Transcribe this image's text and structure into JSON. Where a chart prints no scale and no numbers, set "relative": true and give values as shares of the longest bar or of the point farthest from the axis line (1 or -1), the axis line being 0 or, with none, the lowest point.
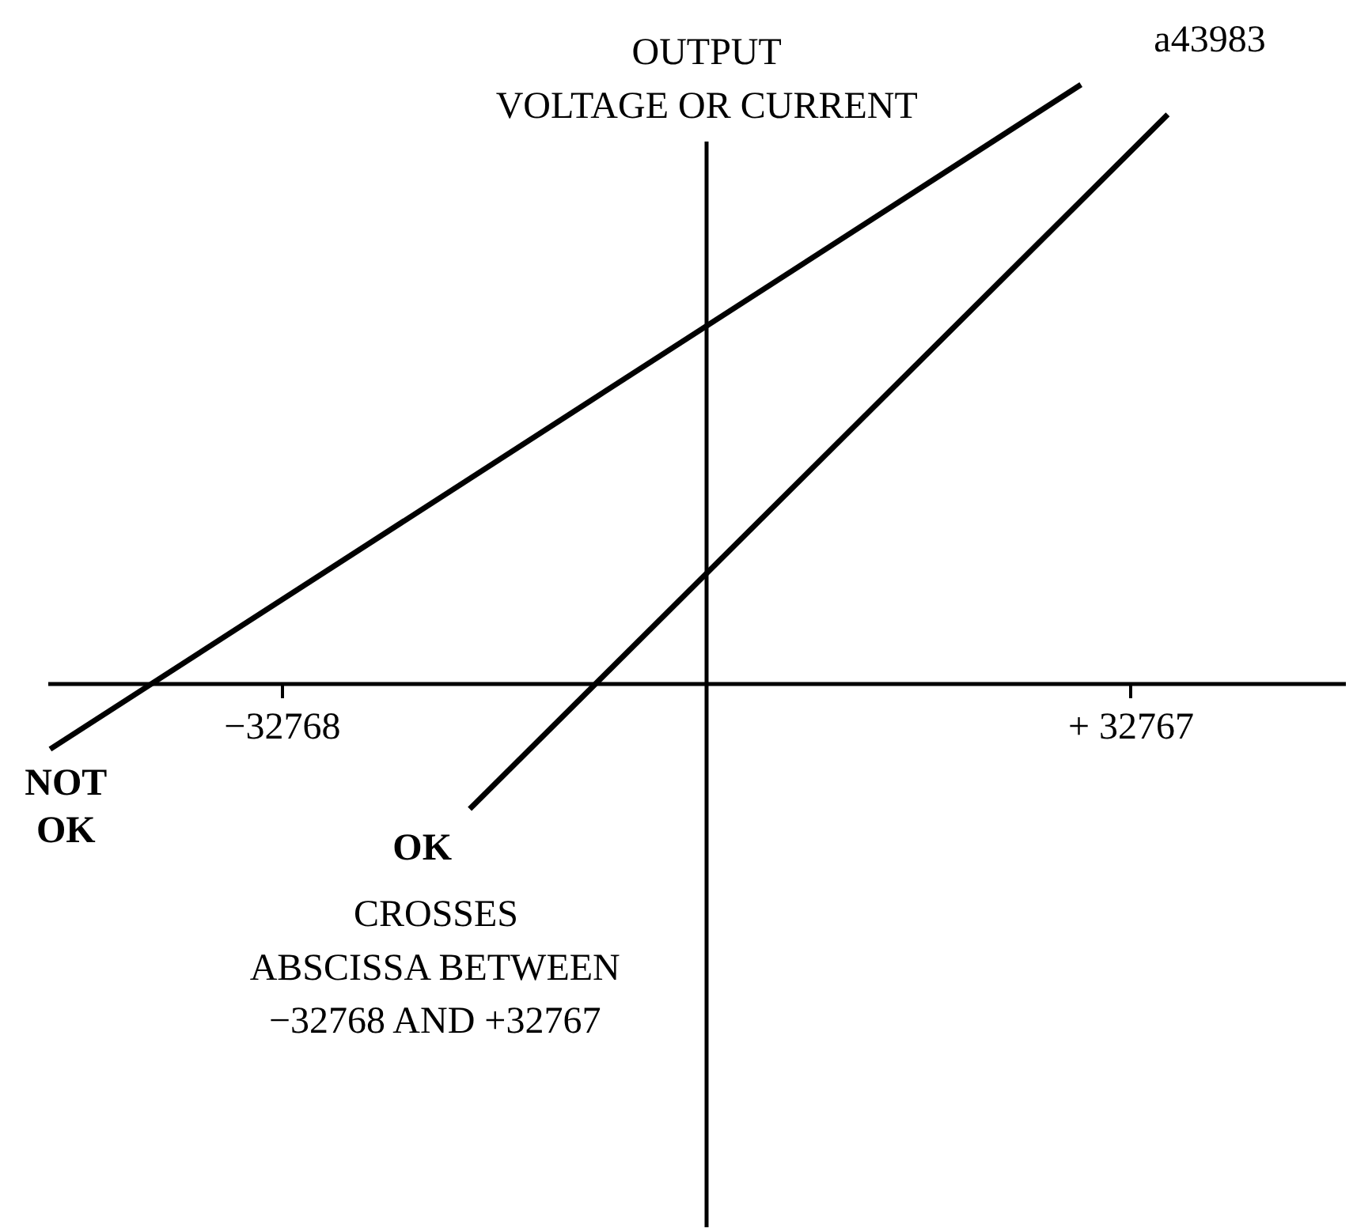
{
  "chart_data": {
    "type": "line",
    "relative": true,
    "ylabel": "OUTPUT\nVOLTAGE OR CURRENT",
    "xlim": [
      -50900,
      49400
    ],
    "xticks": [
      {
        "value": -32768,
        "label": "−32768"
      },
      {
        "value": 32767,
        "label": "+ 32767"
      }
    ],
    "series": [
      {
        "name": "NOT OK",
        "color": "#000000",
        "x": [
          -50700,
          28900
        ],
        "values": [
          -0.11,
          1
        ]
      },
      {
        "name": "OK",
        "color": "#000000",
        "x": [
          -18300,
          35600
        ],
        "values": [
          -0.21,
          0.95
        ]
      }
    ],
    "annotations": [
      "a43983",
      "CROSSES\nABSCISSA BETWEEN\n−32768 AND +32767"
    ]
  }
}
